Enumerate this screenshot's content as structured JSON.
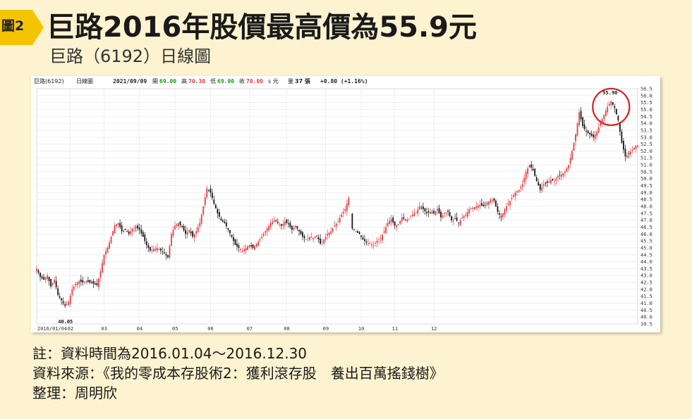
{
  "figure": {
    "badge": "圖2",
    "title": "巨路2016年股價最高價為55.9元",
    "subtitle": "巨路（6192）日線圖"
  },
  "header_bar": {
    "stock": "巨路(6192)",
    "period": "日線圖",
    "date": "2021/09/09",
    "open_label": "開",
    "open": "69.00",
    "high_label": "高",
    "high": "70.30",
    "low_label": "低",
    "low": "69.00",
    "close_label": "收",
    "close": "70.00",
    "unit": "s 元",
    "volume_label": "量",
    "volume": "37 張",
    "change": "+0.80 (+1.16%)"
  },
  "notes": {
    "line1": "註：資料時間為2016.01.04～2016.12.30",
    "line2": "資料來源：《我的零成本存股術2：獲利滾存股　養出百萬搖錢樹》",
    "line3": "整理：周明欣"
  },
  "colors": {
    "up": "#e8383d",
    "down": "#111111",
    "highlight_circle": "#d62020",
    "grid": "#e6e6e6"
  },
  "chart_data": {
    "type": "candlestick",
    "x_tick_labels": [
      "2016/01/04",
      "02",
      "03",
      "04",
      "05",
      "06",
      "07",
      "08",
      "09",
      "10",
      "11",
      "12"
    ],
    "y_ticks": [
      "56.5",
      "56.0",
      "55.5",
      "55.0",
      "54.5",
      "54.0",
      "53.5",
      "53.0",
      "52.5",
      "52.0",
      "51.5",
      "51.0",
      "50.5",
      "50.0",
      "49.5",
      "49.0",
      "48.5",
      "48.0",
      "47.5",
      "47.0",
      "46.5",
      "46.0",
      "45.5",
      "45.0",
      "44.5",
      "44.0",
      "43.5",
      "43.0",
      "42.5",
      "42.0",
      "41.5",
      "41.0",
      "40.5",
      "40.0",
      "39.5"
    ],
    "ylim": [
      39.5,
      56.5
    ],
    "annotations": [
      {
        "label": "55.90",
        "value": 55.9,
        "kind": "high"
      },
      {
        "label": "40.05",
        "value": 40.05,
        "kind": "low"
      }
    ],
    "close_path": [
      [
        0,
        43.5
      ],
      [
        2,
        42.9
      ],
      [
        4,
        42.7
      ],
      [
        6,
        43.0
      ],
      [
        8,
        42.2
      ],
      [
        10,
        42.7
      ],
      [
        12,
        41.6
      ],
      [
        14,
        41.2
      ],
      [
        16,
        40.8
      ],
      [
        18,
        41.1
      ],
      [
        20,
        42.0
      ],
      [
        22,
        42.4
      ],
      [
        24,
        42.6
      ],
      [
        26,
        42.5
      ],
      [
        28,
        42.6
      ],
      [
        30,
        42.5
      ],
      [
        32,
        42.4
      ],
      [
        34,
        42.3
      ],
      [
        36,
        43.3
      ],
      [
        38,
        44.5
      ],
      [
        40,
        45.0
      ],
      [
        42,
        45.8
      ],
      [
        44,
        46.6
      ],
      [
        46,
        46.8
      ],
      [
        48,
        46.2
      ],
      [
        50,
        46.3
      ],
      [
        52,
        46.0
      ],
      [
        54,
        46.4
      ],
      [
        56,
        46.5
      ],
      [
        58,
        46.3
      ],
      [
        60,
        45.8
      ],
      [
        62,
        45.2
      ],
      [
        64,
        44.8
      ],
      [
        66,
        44.9
      ],
      [
        68,
        45.0
      ],
      [
        70,
        44.8
      ],
      [
        72,
        44.6
      ],
      [
        74,
        44.3
      ],
      [
        76,
        46.0
      ],
      [
        78,
        46.6
      ],
      [
        80,
        46.8
      ],
      [
        82,
        46.5
      ],
      [
        84,
        46.0
      ],
      [
        86,
        46.3
      ],
      [
        88,
        45.8
      ],
      [
        90,
        46.2
      ],
      [
        92,
        46.8
      ],
      [
        94,
        48.0
      ],
      [
        96,
        49.3
      ],
      [
        98,
        49.0
      ],
      [
        100,
        48.2
      ],
      [
        102,
        47.5
      ],
      [
        104,
        47.0
      ],
      [
        106,
        46.8
      ],
      [
        108,
        46.3
      ],
      [
        110,
        45.8
      ],
      [
        112,
        45.2
      ],
      [
        114,
        45.0
      ],
      [
        116,
        44.8
      ],
      [
        118,
        45.0
      ],
      [
        120,
        45.2
      ],
      [
        122,
        45.0
      ],
      [
        124,
        45.3
      ],
      [
        126,
        45.6
      ],
      [
        128,
        46.0
      ],
      [
        130,
        46.4
      ],
      [
        132,
        46.8
      ],
      [
        134,
        47.0
      ],
      [
        136,
        46.8
      ],
      [
        138,
        46.6
      ],
      [
        140,
        46.9
      ],
      [
        142,
        46.7
      ],
      [
        144,
        46.3
      ],
      [
        146,
        46.6
      ],
      [
        148,
        46.2
      ],
      [
        150,
        45.8
      ],
      [
        152,
        45.6
      ],
      [
        154,
        45.8
      ],
      [
        156,
        45.7
      ],
      [
        158,
        45.9
      ],
      [
        160,
        45.3
      ],
      [
        162,
        45.6
      ],
      [
        164,
        46.0
      ],
      [
        166,
        46.2
      ],
      [
        168,
        46.6
      ],
      [
        170,
        46.9
      ],
      [
        172,
        47.4
      ],
      [
        174,
        47.8
      ],
      [
        176,
        48.6
      ],
      [
        178,
        46.4
      ],
      [
        180,
        46.2
      ],
      [
        182,
        46.0
      ],
      [
        184,
        45.6
      ],
      [
        186,
        45.4
      ],
      [
        188,
        45.3
      ],
      [
        190,
        45.2
      ],
      [
        192,
        45.5
      ],
      [
        194,
        45.7
      ],
      [
        196,
        46.2
      ],
      [
        198,
        46.8
      ],
      [
        200,
        47.1
      ],
      [
        202,
        46.6
      ],
      [
        204,
        46.7
      ],
      [
        206,
        47.2
      ],
      [
        208,
        47.0
      ],
      [
        210,
        47.1
      ],
      [
        212,
        47.4
      ],
      [
        214,
        47.6
      ],
      [
        216,
        48.0
      ],
      [
        218,
        47.8
      ],
      [
        220,
        47.5
      ],
      [
        222,
        47.6
      ],
      [
        224,
        47.5
      ],
      [
        226,
        47.8
      ],
      [
        228,
        47.2
      ],
      [
        230,
        47.5
      ],
      [
        232,
        47.6
      ],
      [
        234,
        47.0
      ],
      [
        236,
        47.1
      ],
      [
        238,
        46.8
      ],
      [
        240,
        47.2
      ],
      [
        242,
        47.4
      ],
      [
        244,
        47.8
      ],
      [
        246,
        47.9
      ],
      [
        248,
        48.0
      ],
      [
        250,
        48.1
      ],
      [
        252,
        48.0
      ],
      [
        254,
        48.2
      ],
      [
        256,
        48.5
      ],
      [
        258,
        48.4
      ],
      [
        260,
        47.6
      ],
      [
        262,
        47.2
      ],
      [
        264,
        47.8
      ],
      [
        266,
        48.2
      ],
      [
        268,
        48.6
      ],
      [
        270,
        49.0
      ],
      [
        272,
        49.2
      ],
      [
        274,
        49.6
      ],
      [
        276,
        50.5
      ],
      [
        278,
        51.0
      ],
      [
        280,
        50.6
      ],
      [
        282,
        49.8
      ],
      [
        284,
        49.2
      ],
      [
        286,
        49.6
      ],
      [
        288,
        49.7
      ],
      [
        290,
        49.9
      ],
      [
        292,
        49.8
      ],
      [
        294,
        50.2
      ],
      [
        296,
        50.3
      ],
      [
        298,
        50.5
      ],
      [
        300,
        51.0
      ],
      [
        302,
        52.0
      ],
      [
        304,
        53.2
      ],
      [
        306,
        54.8
      ],
      [
        308,
        53.8
      ],
      [
        310,
        53.4
      ],
      [
        312,
        53.2
      ],
      [
        314,
        53.0
      ],
      [
        316,
        53.4
      ],
      [
        318,
        54.0
      ],
      [
        320,
        54.6
      ],
      [
        322,
        55.2
      ],
      [
        324,
        55.6
      ],
      [
        326,
        55.1
      ],
      [
        328,
        54.2
      ],
      [
        330,
        52.6
      ],
      [
        332,
        51.6
      ],
      [
        334,
        51.8
      ],
      [
        336,
        52.1
      ],
      [
        338,
        52.4
      ]
    ],
    "n_days": 340
  }
}
